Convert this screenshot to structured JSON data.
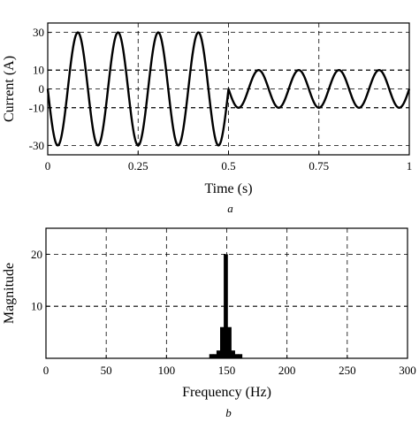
{
  "chart_data": [
    {
      "type": "line",
      "panel_label": "a",
      "xlabel": "Time (s)",
      "ylabel": "Current (A)",
      "xlim": [
        0,
        1
      ],
      "ylim": [
        -35,
        35
      ],
      "x_ticks": [
        0,
        0.25,
        0.5,
        0.75,
        1
      ],
      "x_tick_labels": [
        "0",
        "0.25",
        "0.5",
        "0.75",
        "1"
      ],
      "y_ticks": [
        30,
        10,
        0,
        -10,
        -30
      ],
      "y_tick_labels": [
        "30",
        "10",
        "0",
        "-10",
        "-30"
      ],
      "grid": true,
      "series": [
        {
          "segments": [
            {
              "t_start": 0,
              "t_end": 0.5,
              "amplitude": 30,
              "frequency_hz": 9,
              "phase": "negative-sine"
            },
            {
              "t_start": 0.5,
              "t_end": 1.0,
              "amplitude": 10,
              "frequency_hz": 9,
              "phase": "sine"
            }
          ]
        }
      ]
    },
    {
      "type": "bar",
      "panel_label": "b",
      "xlabel": "Frequency (Hz)",
      "ylabel": "Magnitude",
      "xlim": [
        0,
        300
      ],
      "ylim": [
        0,
        25
      ],
      "x_ticks": [
        0,
        50,
        100,
        150,
        200,
        250,
        300
      ],
      "x_tick_labels": [
        "0",
        "50",
        "100",
        "150",
        "200",
        "250",
        "300"
      ],
      "y_ticks": [
        10,
        20
      ],
      "y_tick_labels": [
        "10",
        "20"
      ],
      "grid": true,
      "bars": [
        {
          "x": 137,
          "value": 0.8
        },
        {
          "x": 140,
          "value": 0.8
        },
        {
          "x": 143,
          "value": 1.5
        },
        {
          "x": 146,
          "value": 6
        },
        {
          "x": 149,
          "value": 20
        },
        {
          "x": 152,
          "value": 6
        },
        {
          "x": 155,
          "value": 1.5
        },
        {
          "x": 158,
          "value": 0.8
        },
        {
          "x": 161,
          "value": 0.8
        }
      ]
    }
  ]
}
